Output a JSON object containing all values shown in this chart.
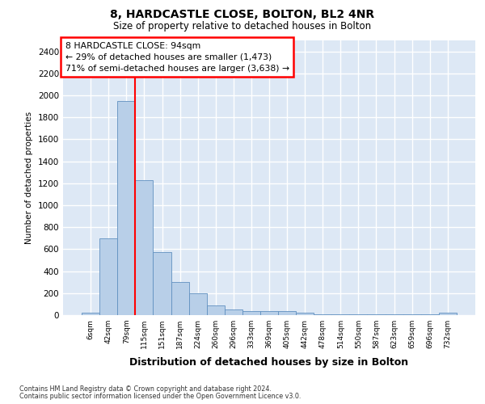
{
  "title1": "8, HARDCASTLE CLOSE, BOLTON, BL2 4NR",
  "title2": "Size of property relative to detached houses in Bolton",
  "xlabel": "Distribution of detached houses by size in Bolton",
  "ylabel": "Number of detached properties",
  "categories": [
    "6sqm",
    "42sqm",
    "79sqm",
    "115sqm",
    "151sqm",
    "187sqm",
    "224sqm",
    "260sqm",
    "296sqm",
    "333sqm",
    "369sqm",
    "405sqm",
    "442sqm",
    "478sqm",
    "514sqm",
    "550sqm",
    "587sqm",
    "623sqm",
    "659sqm",
    "696sqm",
    "732sqm"
  ],
  "values": [
    20,
    700,
    1950,
    1230,
    575,
    305,
    200,
    85,
    50,
    40,
    40,
    35,
    25,
    5,
    5,
    5,
    5,
    5,
    5,
    5,
    20
  ],
  "bar_color": "#b8cfe8",
  "bar_edge_color": "#6090c0",
  "red_line_x": 2.5,
  "annotation_title": "8 HARDCASTLE CLOSE: 94sqm",
  "annotation_line1": "← 29% of detached houses are smaller (1,473)",
  "annotation_line2": "71% of semi-detached houses are larger (3,638) →",
  "ylim": [
    0,
    2500
  ],
  "yticks": [
    0,
    200,
    400,
    600,
    800,
    1000,
    1200,
    1400,
    1600,
    1800,
    2000,
    2200,
    2400
  ],
  "fig_bg_color": "#ffffff",
  "plot_bg_color": "#dde8f5",
  "grid_color": "#ffffff",
  "footer1": "Contains HM Land Registry data © Crown copyright and database right 2024.",
  "footer2": "Contains public sector information licensed under the Open Government Licence v3.0."
}
